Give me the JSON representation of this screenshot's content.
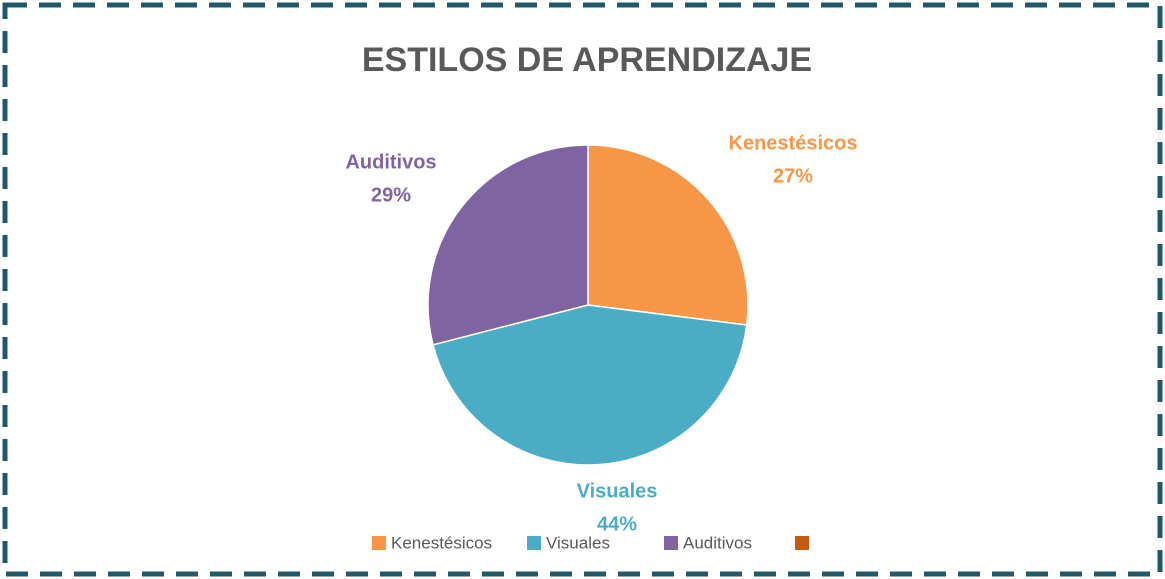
{
  "chart_data": {
    "type": "pie",
    "title": "ESTILOS DE APRENDIZAJE",
    "categories": [
      "Kenestésicos",
      "Visuales",
      "Auditivos",
      null
    ],
    "values": [
      27,
      44,
      29,
      0
    ],
    "value_labels": [
      "27%",
      "44%",
      "29%",
      null
    ],
    "colors": [
      "#f79646",
      "#4bacc6",
      "#8064a2",
      "#c55a11"
    ],
    "legend": "bottom"
  }
}
